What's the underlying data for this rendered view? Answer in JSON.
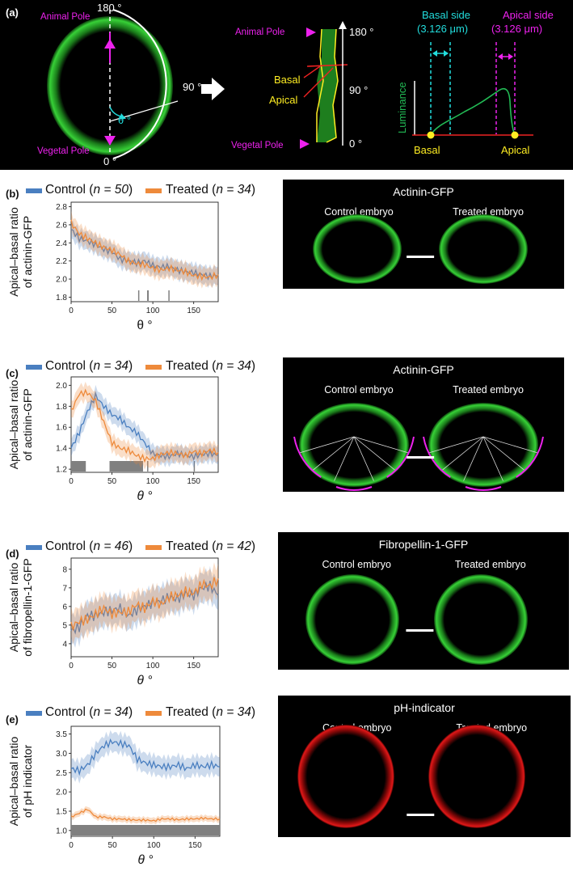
{
  "colors": {
    "control": "#4a7fc0",
    "treated": "#ee8a3b",
    "magenta": "#ee22ee",
    "cyan": "#22dddd",
    "yellow": "#ffee22",
    "green": "#33ee33"
  },
  "panel_a": {
    "label": "(a)",
    "animal_pole": "Animal Pole",
    "vegetal_pole": "Vegetal Pole",
    "angle_180": "180 °",
    "angle_90": "90 °",
    "angle_0": "0 °",
    "theta": "θ °",
    "strip_animal_pole": "Animal Pole",
    "strip_vegetal_pole": "Vegetal Pole",
    "strip_180": "180 °",
    "strip_90": "90 °",
    "strip_0": "0 °",
    "basal": "Basal",
    "apical": "Apical",
    "basal_side": "Basal side",
    "basal_side_width": "(3.126 μm)",
    "apical_side": "Apical side",
    "apical_side_width": "(3.126 μm)",
    "luminance": "Luminance",
    "profile_basal": "Basal",
    "profile_apical": "Apical"
  },
  "charts": [
    {
      "label": "(b)",
      "legend_control": "Control",
      "n_control": "n = 50",
      "legend_treated": "Treated",
      "n_treated": "n = 34",
      "ylabel_1": "Apical–basal ratio",
      "ylabel_2": "of actinin-GFP",
      "xlabel": "θ °",
      "xlabel_italic": false,
      "micro_title": "Actinin-GFP",
      "micro_left": "Control embryo",
      "micro_right": "Treated embryo"
    },
    {
      "label": "(c)",
      "legend_control": "Control",
      "n_control": "n = 34",
      "legend_treated": "Treated",
      "n_treated": "n = 34",
      "ylabel_1": "Apical–basal ratio",
      "ylabel_2": "of actinin-GFP",
      "xlabel": "θ °",
      "xlabel_italic": true,
      "micro_title": "Actinin-GFP",
      "micro_left": "Control embryo",
      "micro_right": "Treated embryo"
    },
    {
      "label": "(d)",
      "legend_control": "Control",
      "n_control": "n = 46",
      "legend_treated": "Treated",
      "n_treated": "n = 42",
      "ylabel_1": "Apical–basal ratio",
      "ylabel_2": "of fibropellin-1-GFP",
      "xlabel": "θ °",
      "xlabel_italic": true,
      "micro_title": "Fibropellin-1-GFP",
      "micro_left": "Control embryo",
      "micro_right": "Treated embryo"
    },
    {
      "label": "(e)",
      "legend_control": "Control",
      "n_control": "n = 34",
      "legend_treated": "Treated",
      "n_treated": "n = 34",
      "ylabel_1": "Apical–basal ratio",
      "ylabel_2": "of pH indicator",
      "xlabel": "θ °",
      "xlabel_italic": true,
      "micro_title": "pH-indicator",
      "micro_left": "Control embryo",
      "micro_right": "Treated embryo"
    }
  ],
  "chart_data": [
    {
      "type": "line",
      "xlim": [
        0,
        180
      ],
      "ylim": [
        1.75,
        2.85
      ],
      "xticks": [
        "0",
        "50",
        "100",
        "150"
      ],
      "xtick_values": [
        0,
        50,
        100,
        150
      ],
      "yticks": [
        "1.8",
        "2.0",
        "2.2",
        "2.4",
        "2.6",
        "2.8"
      ],
      "ytick_values": [
        1.8,
        2.0,
        2.2,
        2.4,
        2.6,
        2.8
      ],
      "x": [
        0,
        10,
        20,
        30,
        40,
        50,
        60,
        70,
        80,
        90,
        100,
        110,
        120,
        130,
        140,
        150,
        160,
        170,
        180
      ],
      "series": [
        {
          "name": "Control",
          "values": [
            2.55,
            2.45,
            2.42,
            2.38,
            2.33,
            2.3,
            2.22,
            2.2,
            2.18,
            2.2,
            2.15,
            2.13,
            2.14,
            2.1,
            2.08,
            2.07,
            2.05,
            2.03,
            2.04
          ],
          "err": 0.1
        },
        {
          "name": "Treated",
          "values": [
            2.62,
            2.5,
            2.45,
            2.4,
            2.35,
            2.32,
            2.27,
            2.2,
            2.17,
            2.16,
            2.12,
            2.1,
            2.12,
            2.1,
            2.08,
            2.04,
            2.03,
            2.02,
            2.05
          ],
          "err": 0.1
        }
      ],
      "significance_ranges": [
        [
          82,
          83
        ],
        [
          93,
          95
        ],
        [
          119,
          120
        ]
      ]
    },
    {
      "type": "line",
      "xlim": [
        0,
        180
      ],
      "ylim": [
        1.17,
        2.08
      ],
      "xticks": [
        "0",
        "50",
        "100",
        "150"
      ],
      "xtick_values": [
        0,
        50,
        100,
        150
      ],
      "yticks": [
        "1.2",
        "1.4",
        "1.6",
        "1.8",
        "2.0"
      ],
      "ytick_values": [
        1.2,
        1.4,
        1.6,
        1.8,
        2.0
      ],
      "x": [
        0,
        10,
        20,
        30,
        40,
        50,
        60,
        70,
        80,
        90,
        100,
        110,
        120,
        130,
        140,
        150,
        160,
        170,
        180
      ],
      "series": [
        {
          "name": "Control",
          "values": [
            1.4,
            1.55,
            1.75,
            1.9,
            1.8,
            1.72,
            1.68,
            1.6,
            1.55,
            1.45,
            1.35,
            1.33,
            1.32,
            1.35,
            1.33,
            1.32,
            1.34,
            1.35,
            1.33
          ],
          "err": 0.08
        },
        {
          "name": "Treated",
          "values": [
            1.75,
            1.92,
            1.93,
            1.85,
            1.65,
            1.45,
            1.4,
            1.38,
            1.33,
            1.3,
            1.3,
            1.34,
            1.36,
            1.35,
            1.33,
            1.37,
            1.35,
            1.38,
            1.36
          ],
          "err": 0.08
        }
      ],
      "significance_ranges": [
        [
          0,
          18
        ],
        [
          47,
          88
        ],
        [
          93,
          94
        ],
        [
          150,
          151
        ]
      ]
    },
    {
      "type": "line",
      "xlim": [
        0,
        180
      ],
      "ylim": [
        3.3,
        8.6
      ],
      "xticks": [
        "0",
        "50",
        "100",
        "150"
      ],
      "xtick_values": [
        0,
        50,
        100,
        150
      ],
      "yticks": [
        "4",
        "5",
        "6",
        "7",
        "8"
      ],
      "ytick_values": [
        4,
        5,
        6,
        7,
        8
      ],
      "x": [
        0,
        10,
        20,
        30,
        40,
        50,
        60,
        70,
        80,
        90,
        100,
        110,
        120,
        130,
        140,
        150,
        160,
        170,
        180
      ],
      "series": [
        {
          "name": "Control",
          "values": [
            4.7,
            4.9,
            5.5,
            5.5,
            5.7,
            5.8,
            5.9,
            5.5,
            5.8,
            6.0,
            6.2,
            6.3,
            6.5,
            6.4,
            6.7,
            6.6,
            7.0,
            7.1,
            6.6
          ],
          "err": 0.8
        },
        {
          "name": "Treated",
          "values": [
            4.9,
            5.2,
            5.3,
            5.6,
            5.9,
            5.6,
            5.7,
            5.7,
            6.1,
            5.9,
            6.3,
            6.1,
            6.5,
            6.6,
            6.8,
            6.7,
            7.2,
            7.1,
            7.5
          ],
          "err": 0.8
        }
      ],
      "significance_ranges": []
    },
    {
      "type": "line",
      "xlim": [
        0,
        180
      ],
      "ylim": [
        0.85,
        3.7
      ],
      "xticks": [
        "0",
        "50",
        "100",
        "150"
      ],
      "xtick_values": [
        0,
        50,
        100,
        150
      ],
      "yticks": [
        "1.0",
        "1.5",
        "2.0",
        "2.5",
        "3.0",
        "3.5"
      ],
      "ytick_values": [
        1.0,
        1.5,
        2.0,
        2.5,
        3.0,
        3.5
      ],
      "x": [
        0,
        10,
        20,
        30,
        40,
        50,
        60,
        70,
        80,
        90,
        100,
        110,
        120,
        130,
        140,
        150,
        160,
        170,
        180
      ],
      "series": [
        {
          "name": "Control",
          "values": [
            2.6,
            2.55,
            2.7,
            3.0,
            3.2,
            3.3,
            3.25,
            3.2,
            2.85,
            2.75,
            2.7,
            2.65,
            2.65,
            2.7,
            2.6,
            2.7,
            2.65,
            2.7,
            2.65
          ],
          "err": 0.25
        },
        {
          "name": "Treated",
          "values": [
            1.35,
            1.45,
            1.55,
            1.35,
            1.35,
            1.3,
            1.3,
            1.28,
            1.27,
            1.27,
            1.25,
            1.3,
            1.3,
            1.28,
            1.3,
            1.3,
            1.32,
            1.3,
            1.3
          ],
          "err": 0.08
        }
      ],
      "significance_ranges": [
        [
          0,
          180
        ]
      ]
    }
  ]
}
